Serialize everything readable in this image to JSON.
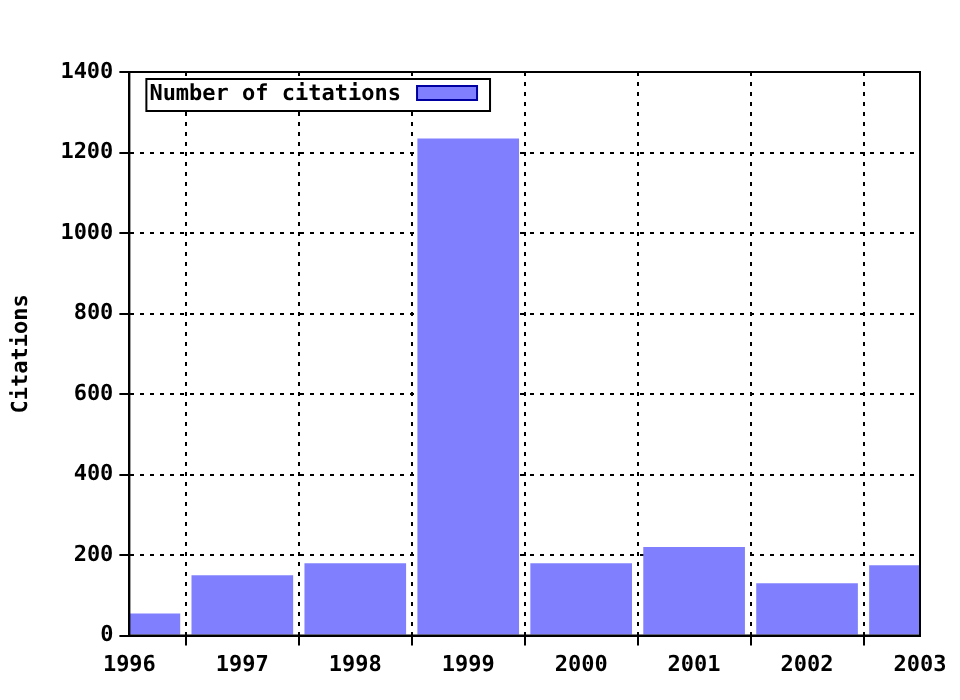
{
  "chart_data": {
    "type": "bar",
    "ylabel": "Citations",
    "x": [
      1996,
      1997,
      1998,
      1999,
      2000,
      2001,
      2002,
      2003
    ],
    "series": [
      {
        "name": "Number of citations",
        "color": "#8080ff",
        "values": [
          55,
          150,
          180,
          1235,
          180,
          220,
          130,
          175
        ]
      }
    ],
    "xlim": [
      1996,
      2003
    ],
    "xticks": [
      1996,
      1997,
      1998,
      1999,
      2000,
      2001,
      2002,
      2003
    ],
    "ylim": [
      0,
      1400
    ],
    "yticks": [
      0,
      200,
      400,
      600,
      800,
      1000,
      1200,
      1400
    ],
    "grid": true,
    "legend": "top left"
  }
}
